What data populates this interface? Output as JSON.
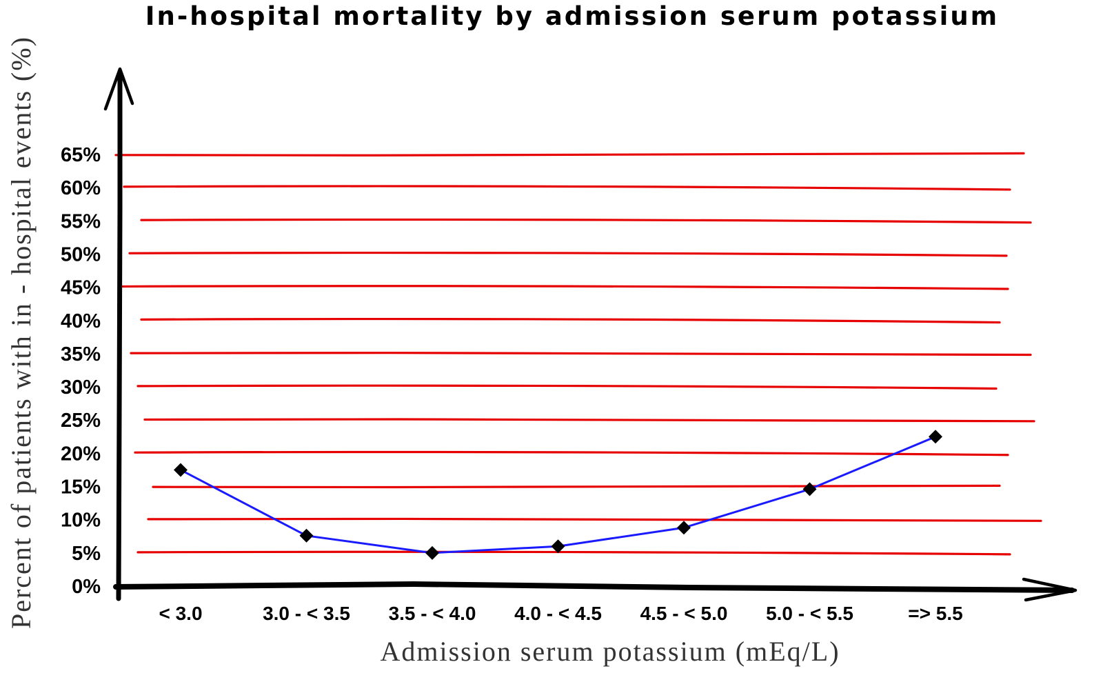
{
  "chart_data": {
    "type": "line",
    "title": "In-hospital mortality by admission serum potassium",
    "xlabel": "Admission serum potassium (mEq/L)",
    "ylabel": "Percent of patients with in - hospital events (%)",
    "categories": [
      "< 3.0",
      "3.0 - < 3.5",
      "3.5 - < 4.0",
      "4.0 - < 4.5",
      "4.5 - < 5.0",
      "5.0 - < 5.5",
      "=> 5.5"
    ],
    "series": [
      {
        "values": [
          17.5,
          7.6,
          5.0,
          6.0,
          8.8,
          14.6,
          22.5
        ]
      }
    ],
    "yticks": [
      0,
      5,
      10,
      15,
      20,
      25,
      30,
      35,
      40,
      45,
      50,
      55,
      60,
      65
    ],
    "ytick_labels": [
      "0%",
      "5%",
      "10%",
      "15%",
      "20%",
      "25%",
      "30%",
      "35%",
      "40%",
      "45%",
      "50%",
      "55%",
      "60%",
      "65%"
    ],
    "ylim": [
      0,
      65
    ],
    "grid": true,
    "legend": "none",
    "colors": {
      "grid": "#e60000",
      "line": "#1a1aff",
      "marker": "#000000",
      "axis": "#000000"
    }
  }
}
